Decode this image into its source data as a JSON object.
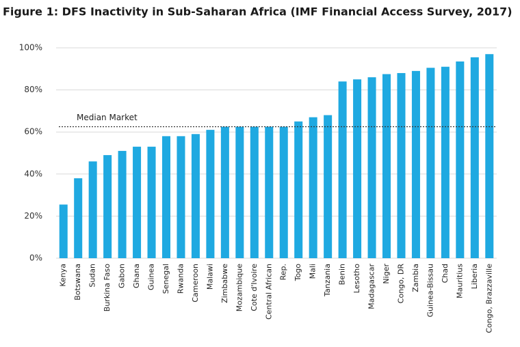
{
  "chart_data": {
    "type": "bar",
    "title": "Figure 1: DFS Inactivity in Sub-Saharan Africa (IMF Financial Access Survey, 2017)",
    "categories": [
      "Kenya",
      "Botswana",
      "Sudan",
      "Burkina Faso",
      "Gabon",
      "Ghana",
      "Guinea",
      "Senegal",
      "Rwanda",
      "Cameroon",
      "Malawi",
      "Zimbabwe",
      "Mozambique",
      "Cote d'Ivoire",
      "Central African",
      "Rep.",
      "Togo",
      "Mali",
      "Tanzania",
      "Benin",
      "Lesotho",
      "Madagascar",
      "Niger",
      "Congo, DR",
      "Zambia",
      "Guinea-Bissau",
      "Chad",
      "Mauritius",
      "Liberia",
      "Congo, Brazzaville"
    ],
    "values": [
      25.5,
      38,
      46,
      49,
      51,
      53,
      53,
      58,
      58,
      59,
      61,
      62.5,
      62.5,
      62.5,
      62.5,
      62.5,
      65,
      67,
      68,
      84,
      85,
      86,
      87.5,
      88,
      89,
      90.5,
      91,
      93.5,
      95.5,
      97
    ],
    "color": "#1fa9e1",
    "ylim": [
      0,
      100
    ],
    "yticks": [
      {
        "value": 0,
        "label": "0%"
      },
      {
        "value": 20,
        "label": "20%"
      },
      {
        "value": 40,
        "label": "40%"
      },
      {
        "value": 60,
        "label": "60%"
      },
      {
        "value": 80,
        "label": "80%"
      },
      {
        "value": 100,
        "label": "100%"
      }
    ],
    "grid": true,
    "reference_line": {
      "label": "Median Market",
      "value": 62.5
    }
  }
}
